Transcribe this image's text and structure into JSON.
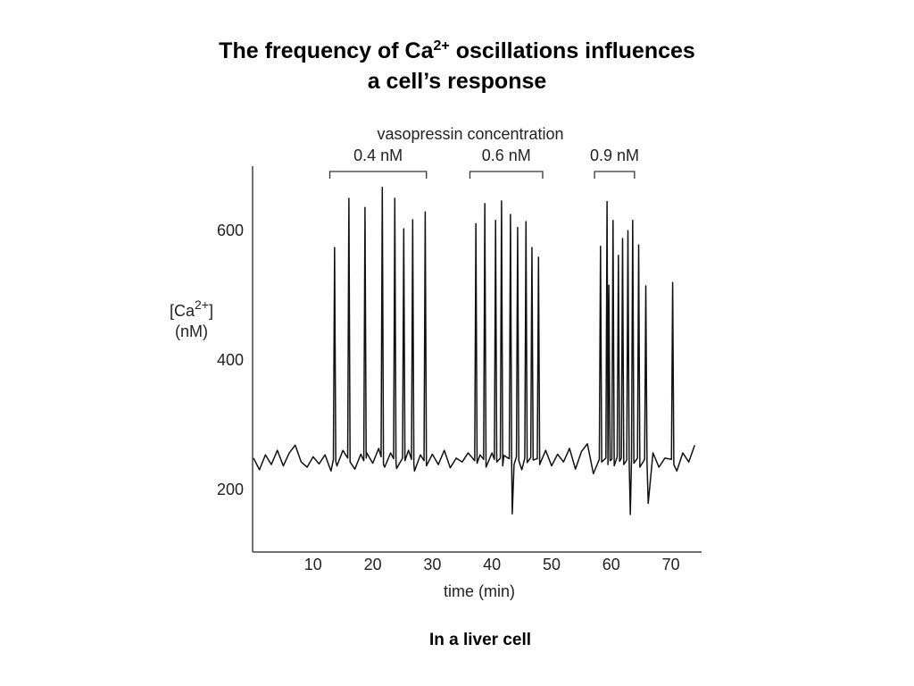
{
  "header": {
    "title_pre": "The frequency of Ca",
    "title_sup": "2+",
    "title_post": " oscillations influences",
    "title_line2": "a cell’s response"
  },
  "chart_data": {
    "type": "line",
    "color": "#111111",
    "annotation": "vasopressin concentration",
    "brackets": [
      {
        "label": "0.4 nM",
        "range": [
          12.8,
          29.0
        ]
      },
      {
        "label": "0.6 nM",
        "range": [
          36.3,
          48.5
        ]
      },
      {
        "label": "0.9 nM",
        "range": [
          57.2,
          63.9
        ]
      }
    ],
    "y_label": {
      "pre": "[Ca",
      "sup": "2+",
      "post": "]",
      "unit": "(nM)"
    },
    "x_label": "time (min)",
    "xlim": [
      0,
      75
    ],
    "ylim": [
      105,
      700
    ],
    "xticks": [
      10,
      20,
      30,
      40,
      50,
      60,
      70
    ],
    "yticks": [
      200,
      400,
      600
    ],
    "x": [
      0,
      1,
      2,
      3,
      4,
      5,
      6,
      7,
      8,
      9,
      10,
      11,
      12,
      13,
      13.4,
      13.6,
      13.8,
      14,
      15,
      15.8,
      16.0,
      16.2,
      17,
      18,
      18.5,
      18.7,
      18.9,
      19,
      20,
      21,
      21.4,
      21.6,
      21.8,
      22,
      23,
      23.5,
      23.7,
      23.9,
      24,
      25.0,
      25.2,
      25.4,
      26,
      26.5,
      26.7,
      26.9,
      27,
      28,
      28.6,
      28.8,
      29.0,
      30,
      31,
      32,
      33,
      34,
      35,
      36,
      37.1,
      37.3,
      37.5,
      38,
      38.6,
      38.8,
      39.0,
      40,
      40.4,
      40.6,
      40.8,
      41.4,
      41.6,
      41.8,
      42,
      42.9,
      43.1,
      43.3,
      43.4,
      43.7,
      44.1,
      44.3,
      44.5,
      45,
      45.5,
      45.7,
      45.9,
      46.5,
      46.7,
      46.9,
      47.6,
      47.8,
      48.0,
      49,
      50,
      51,
      52,
      53,
      54,
      55,
      56,
      57,
      58.0,
      58.2,
      58.4,
      59.1,
      59.3,
      59.45,
      59.6,
      59.8,
      60.1,
      60.3,
      60.5,
      61.0,
      61.2,
      61.4,
      61.7,
      61.9,
      62.1,
      62.6,
      62.8,
      63.0,
      63.2,
      63.4,
      63.6,
      63.8,
      64.4,
      64.6,
      64.8,
      65.6,
      65.8,
      66.0,
      66.2,
      67,
      68,
      69,
      70.1,
      70.3,
      70.5,
      71,
      72,
      73,
      74
    ],
    "values": [
      250,
      232,
      255,
      240,
      262,
      238,
      258,
      270,
      244,
      236,
      252,
      241,
      255,
      230,
      248,
      575,
      245,
      238,
      262,
      250,
      651,
      244,
      233,
      256,
      246,
      637,
      250,
      258,
      242,
      265,
      252,
      668,
      240,
      236,
      258,
      249,
      651,
      244,
      234,
      250,
      604,
      246,
      262,
      248,
      618,
      241,
      230,
      255,
      246,
      630,
      238,
      256,
      240,
      262,
      235,
      250,
      244,
      258,
      246,
      612,
      242,
      255,
      248,
      643,
      236,
      258,
      248,
      617,
      244,
      250,
      647,
      238,
      254,
      249,
      626,
      245,
      164,
      240,
      252,
      606,
      246,
      232,
      250,
      615,
      243,
      251,
      575,
      247,
      249,
      560,
      240,
      262,
      238,
      256,
      244,
      265,
      233,
      260,
      272,
      226,
      248,
      577,
      244,
      250,
      646,
      240,
      517,
      246,
      248,
      617,
      238,
      252,
      563,
      245,
      250,
      589,
      240,
      247,
      601,
      250,
      163,
      248,
      617,
      242,
      250,
      579,
      236,
      248,
      516,
      244,
      180,
      258,
      236,
      250,
      248,
      521,
      240,
      230,
      258,
      244,
      270
    ]
  },
  "caption": "In a liver cell"
}
